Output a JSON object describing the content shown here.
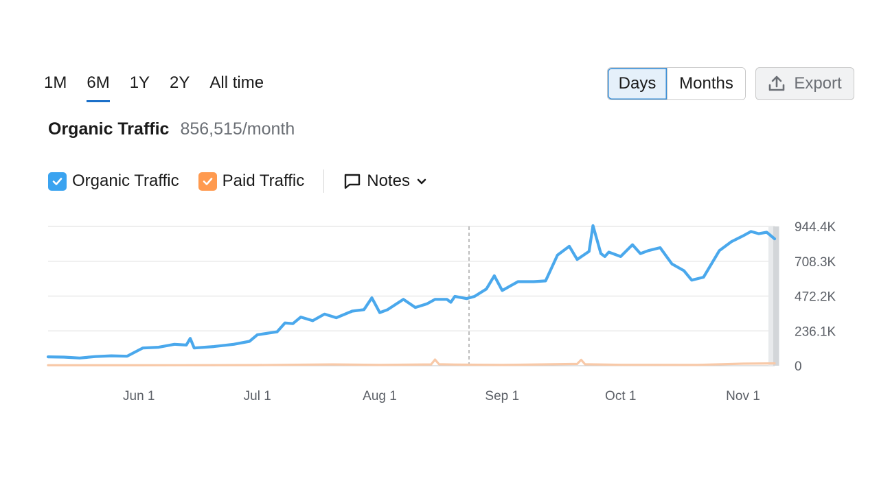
{
  "range_tabs": [
    {
      "label": "1M"
    },
    {
      "label": "6M",
      "active": true
    },
    {
      "label": "1Y"
    },
    {
      "label": "2Y"
    },
    {
      "label": "All time"
    }
  ],
  "view_toggle": {
    "days": "Days",
    "months": "Months",
    "active": "Days"
  },
  "export_label": "Export",
  "metric": {
    "title": "Organic Traffic",
    "value": "856,515/month"
  },
  "legend": {
    "organic": "Organic Traffic",
    "paid": "Paid Traffic",
    "notes": "Notes"
  },
  "colors": {
    "organic": "#4aa8ec",
    "paid": "#f8c9a8",
    "accent": "#1a6fc9",
    "grid": "#e4e4e4"
  },
  "chart_data": {
    "type": "line",
    "x_ticks": [
      "Jun 1",
      "Jul 1",
      "Aug 1",
      "Sep 1",
      "Oct 1",
      "Nov 1"
    ],
    "y_ticks": [
      "944.4K",
      "708.3K",
      "472.2K",
      "236.1K",
      "0"
    ],
    "ylim": [
      0,
      944400
    ],
    "grid": true,
    "series": [
      {
        "name": "Organic Traffic",
        "x": [
          "2024-05-09",
          "2024-05-13",
          "2024-05-17",
          "2024-05-21",
          "2024-05-25",
          "2024-05-29",
          "2024-06-02",
          "2024-06-06",
          "2024-06-10",
          "2024-06-13",
          "2024-06-14",
          "2024-06-15",
          "2024-06-20",
          "2024-06-25",
          "2024-06-29",
          "2024-07-01",
          "2024-07-06",
          "2024-07-08",
          "2024-07-10",
          "2024-07-12",
          "2024-07-15",
          "2024-07-18",
          "2024-07-21",
          "2024-07-25",
          "2024-07-28",
          "2024-07-30",
          "2024-08-01",
          "2024-08-03",
          "2024-08-07",
          "2024-08-10",
          "2024-08-13",
          "2024-08-15",
          "2024-08-18",
          "2024-08-19",
          "2024-08-20",
          "2024-08-23",
          "2024-08-25",
          "2024-08-28",
          "2024-08-30",
          "2024-09-01",
          "2024-09-03",
          "2024-09-05",
          "2024-09-09",
          "2024-09-12",
          "2024-09-15",
          "2024-09-18",
          "2024-09-20",
          "2024-09-23",
          "2024-09-24",
          "2024-09-26",
          "2024-09-27",
          "2024-09-28",
          "2024-10-01",
          "2024-10-04",
          "2024-10-06",
          "2024-10-08",
          "2024-10-11",
          "2024-10-14",
          "2024-10-17",
          "2024-10-19",
          "2024-10-22",
          "2024-10-24",
          "2024-10-26",
          "2024-10-29",
          "2024-11-01",
          "2024-11-03",
          "2024-11-05",
          "2024-11-07",
          "2024-11-09"
        ],
        "values": [
          60000,
          58000,
          52000,
          62000,
          67000,
          64000,
          120000,
          125000,
          145000,
          140000,
          185000,
          120000,
          130000,
          145000,
          165000,
          210000,
          230000,
          290000,
          285000,
          330000,
          305000,
          350000,
          325000,
          370000,
          380000,
          460000,
          360000,
          380000,
          450000,
          395000,
          420000,
          450000,
          450000,
          430000,
          470000,
          455000,
          470000,
          520000,
          610000,
          510000,
          540000,
          570000,
          570000,
          575000,
          750000,
          810000,
          720000,
          775000,
          950000,
          760000,
          740000,
          770000,
          740000,
          820000,
          760000,
          780000,
          800000,
          690000,
          645000,
          580000,
          600000,
          690000,
          780000,
          840000,
          880000,
          910000,
          895000,
          905000,
          860000
        ]
      },
      {
        "name": "Paid Traffic",
        "x": [
          "2024-05-09",
          "2024-06-01",
          "2024-07-01",
          "2024-07-20",
          "2024-08-01",
          "2024-08-14",
          "2024-08-15",
          "2024-08-16",
          "2024-08-20",
          "2024-09-01",
          "2024-09-20",
          "2024-09-21",
          "2024-09-22",
          "2024-10-01",
          "2024-10-20",
          "2024-11-01",
          "2024-11-09"
        ],
        "values": [
          3000,
          3000,
          4000,
          9000,
          5000,
          9000,
          42000,
          10000,
          8000,
          5000,
          12000,
          40000,
          10000,
          6000,
          5000,
          14000,
          16000
        ]
      }
    ]
  }
}
